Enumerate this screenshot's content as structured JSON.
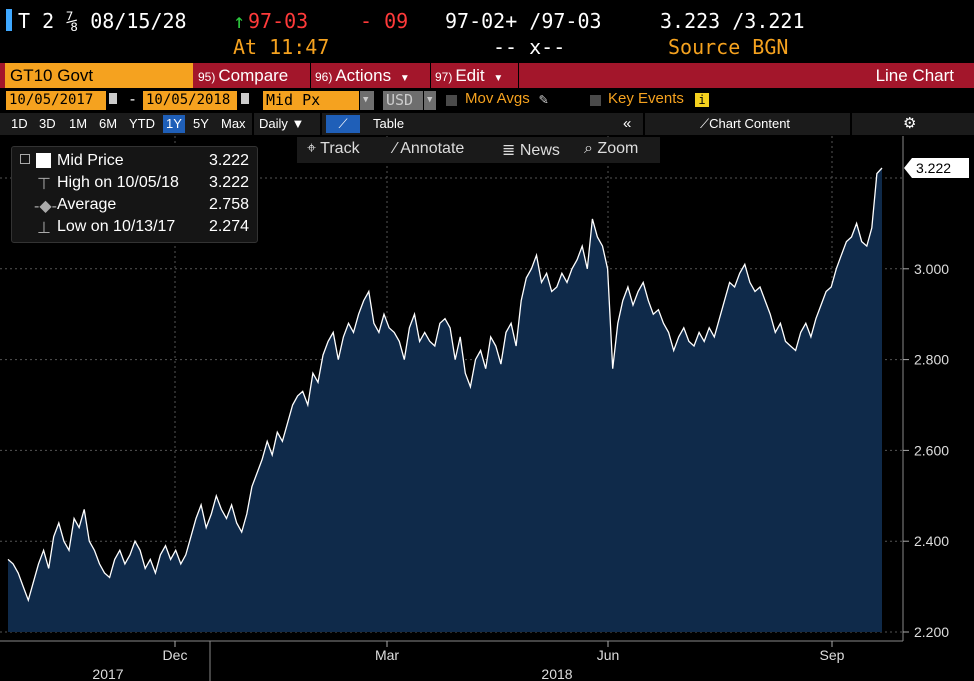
{
  "header": {
    "ticker": "T 2 ⅞ 08/15/28",
    "arrow": "↑",
    "last_price": "97-03",
    "change": "- 09",
    "bid_ask": "97-02+ /97-03",
    "yield": "3.223 /3.221",
    "time": "At 11:47",
    "size": "-- x--",
    "source": "Source BGN"
  },
  "function_bar": {
    "security": "GT10 Govt",
    "compare_num": "95)",
    "compare_label": "Compare",
    "actions_num": "96)",
    "actions_label": "Actions",
    "edit_num": "97)",
    "edit_label": "Edit",
    "view_title": "Line Chart"
  },
  "settings": {
    "start_date": "10/05/2017",
    "end_date": "10/05/2018",
    "dash": "-",
    "field": "Mid Px",
    "currency": "USD",
    "mov_avgs": "Mov Avgs",
    "key_events": "Key Events"
  },
  "range_bar": {
    "ranges": [
      "1D",
      "3D",
      "1M",
      "6M",
      "YTD",
      "1Y",
      "5Y",
      "Max"
    ],
    "active_range": "1Y",
    "frequency": "Daily",
    "table": "Table",
    "chart_content": "Chart Content"
  },
  "toolbar": {
    "track": "Track",
    "annotate": "Annotate",
    "news": "News",
    "zoom": "Zoom"
  },
  "legend": {
    "mid_label": "Mid Price",
    "mid_value": "3.222",
    "high_label": "High on 10/05/18",
    "high_value": "3.222",
    "avg_label": "Average",
    "avg_value": "2.758",
    "low_label": "Low on 10/13/17",
    "low_value": "2.274"
  },
  "colors": {
    "accent_orange": "#f5a21f",
    "bar_red": "#a3162b",
    "price_red": "#ff3a3a",
    "arrow_green": "#2ecc40",
    "area_fill": "#0f2a4a",
    "line": "#ffffff"
  },
  "chart_data": {
    "type": "area",
    "x_ticks": [
      "Dec",
      "Mar",
      "Jun",
      "Sep"
    ],
    "year_labels": [
      "2017",
      "2018"
    ],
    "y_ticks": [
      "2.200",
      "2.400",
      "2.600",
      "2.800",
      "3.000",
      "3.222"
    ],
    "ylim": [
      2.2,
      3.3
    ],
    "last_value_label": "3.222",
    "grid": true,
    "series": [
      {
        "values": [
          2.36,
          2.35,
          2.33,
          2.3,
          2.27,
          2.31,
          2.35,
          2.38,
          2.34,
          2.41,
          2.44,
          2.4,
          2.38,
          2.45,
          2.43,
          2.47,
          2.4,
          2.38,
          2.35,
          2.33,
          2.32,
          2.36,
          2.38,
          2.35,
          2.37,
          2.4,
          2.38,
          2.34,
          2.36,
          2.33,
          2.37,
          2.39,
          2.36,
          2.38,
          2.35,
          2.37,
          2.41,
          2.45,
          2.48,
          2.43,
          2.46,
          2.5,
          2.47,
          2.45,
          2.48,
          2.44,
          2.42,
          2.46,
          2.52,
          2.55,
          2.58,
          2.62,
          2.59,
          2.64,
          2.62,
          2.66,
          2.7,
          2.72,
          2.73,
          2.7,
          2.77,
          2.75,
          2.81,
          2.84,
          2.86,
          2.8,
          2.85,
          2.88,
          2.86,
          2.9,
          2.93,
          2.95,
          2.88,
          2.86,
          2.9,
          2.87,
          2.86,
          2.84,
          2.8,
          2.87,
          2.9,
          2.84,
          2.86,
          2.84,
          2.83,
          2.88,
          2.89,
          2.87,
          2.8,
          2.85,
          2.77,
          2.74,
          2.8,
          2.82,
          2.78,
          2.85,
          2.83,
          2.79,
          2.86,
          2.88,
          2.83,
          2.93,
          2.98,
          3.0,
          3.03,
          2.97,
          2.99,
          2.95,
          2.96,
          2.99,
          2.97,
          3.0,
          3.02,
          3.05,
          3.0,
          3.11,
          3.07,
          3.05,
          3.0,
          2.78,
          2.88,
          2.93,
          2.96,
          2.92,
          2.95,
          2.97,
          2.93,
          2.9,
          2.91,
          2.88,
          2.86,
          2.82,
          2.85,
          2.87,
          2.84,
          2.83,
          2.86,
          2.84,
          2.87,
          2.85,
          2.89,
          2.93,
          2.97,
          2.96,
          2.99,
          3.01,
          2.97,
          2.95,
          2.96,
          2.93,
          2.9,
          2.86,
          2.88,
          2.84,
          2.83,
          2.82,
          2.86,
          2.88,
          2.85,
          2.89,
          2.92,
          2.95,
          2.96,
          3.0,
          3.03,
          3.06,
          3.07,
          3.1,
          3.06,
          3.05,
          3.09,
          3.21,
          3.222
        ]
      }
    ]
  }
}
